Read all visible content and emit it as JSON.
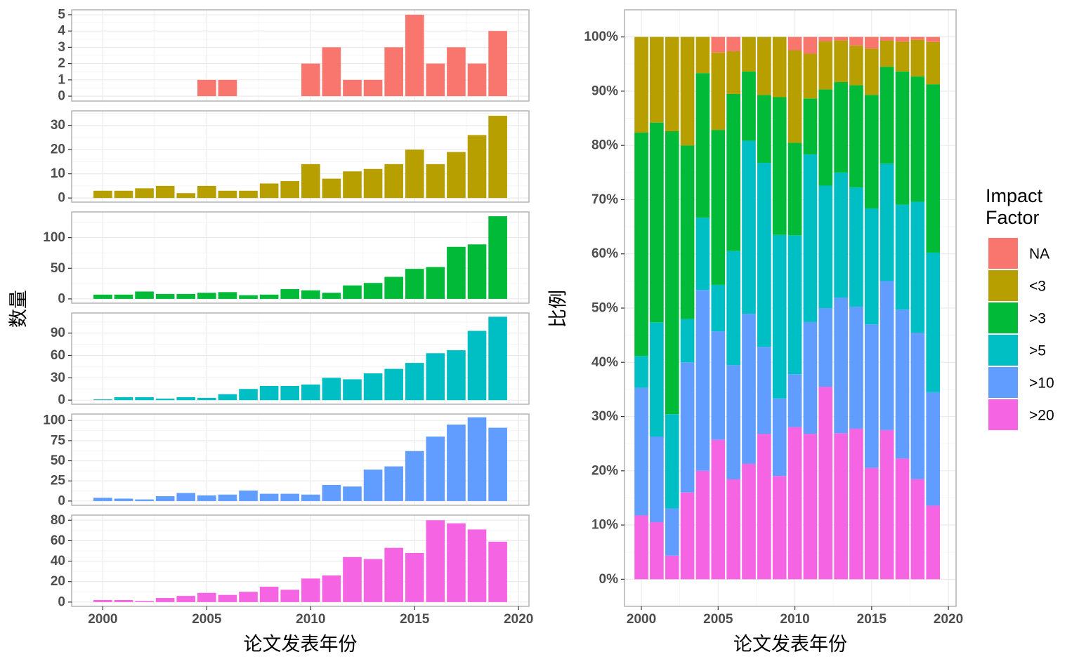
{
  "chart_data": [
    {
      "type": "bar",
      "layout": "faceted",
      "x": [
        2000,
        2001,
        2002,
        2003,
        2004,
        2005,
        2006,
        2007,
        2008,
        2009,
        2010,
        2011,
        2012,
        2013,
        2014,
        2015,
        2016,
        2017,
        2018,
        2019
      ],
      "xlabel": "论文发表年份",
      "ylabel": "数量",
      "x_ticks": [
        2000,
        2005,
        2010,
        2015,
        2020
      ],
      "xlim": [
        1998.5,
        2020.5
      ],
      "grid": true,
      "panels": [
        {
          "name": "NA",
          "color": "#F8766D",
          "ylim": [
            -0.3,
            5.3
          ],
          "y_ticks": [
            0,
            1,
            2,
            3,
            4,
            5
          ],
          "values": [
            0,
            0,
            0,
            0,
            0,
            1,
            1,
            0,
            0,
            0,
            2,
            3,
            1,
            1,
            3,
            5,
            2,
            3,
            2,
            4
          ]
        },
        {
          "name": "<3",
          "color": "#B79F00",
          "ylim": [
            -1.7,
            36
          ],
          "y_ticks": [
            0,
            10,
            20,
            30
          ],
          "values": [
            3,
            3,
            4,
            5,
            2,
            5,
            3,
            3,
            6,
            7,
            14,
            8,
            11,
            12,
            14,
            20,
            14,
            19,
            26,
            34
          ]
        },
        {
          "name": ">3",
          "color": "#00BA38",
          "ylim": [
            -7,
            142
          ],
          "y_ticks": [
            0,
            50,
            100
          ],
          "values": [
            7,
            7,
            12,
            8,
            8,
            10,
            11,
            6,
            7,
            16,
            14,
            10,
            22,
            26,
            36,
            49,
            52,
            85,
            89,
            135
          ]
        },
        {
          "name": ">5",
          "color": "#00BFC4",
          "ylim": [
            -5.5,
            117
          ],
          "y_ticks": [
            0,
            30,
            60,
            90
          ],
          "values": [
            1,
            4,
            4,
            2,
            4,
            3,
            8,
            15,
            19,
            19,
            21,
            30,
            28,
            36,
            42,
            50,
            63,
            67,
            93,
            112
          ]
        },
        {
          "name": ">10",
          "color": "#619CFF",
          "ylim": [
            -5.3,
            108
          ],
          "y_ticks": [
            0,
            25,
            50,
            75,
            100
          ],
          "values": [
            4,
            3,
            2,
            6,
            10,
            7,
            8,
            13,
            9,
            9,
            8,
            20,
            18,
            39,
            43,
            62,
            80,
            95,
            104,
            91
          ]
        },
        {
          "name": ">20",
          "color": "#F564E3",
          "ylim": [
            -4.2,
            85
          ],
          "y_ticks": [
            0,
            20,
            40,
            60,
            80
          ],
          "values": [
            2,
            2,
            1,
            4,
            6,
            9,
            7,
            10,
            15,
            12,
            23,
            26,
            44,
            42,
            53,
            48,
            80,
            77,
            71,
            59
          ]
        }
      ]
    },
    {
      "type": "bar",
      "stacked": true,
      "normalized": true,
      "x": [
        2000,
        2001,
        2002,
        2003,
        2004,
        2005,
        2006,
        2007,
        2008,
        2009,
        2010,
        2011,
        2012,
        2013,
        2014,
        2015,
        2016,
        2017,
        2018,
        2019
      ],
      "xlabel": "论文发表年份",
      "ylabel": "比例",
      "x_ticks": [
        2000,
        2005,
        2010,
        2015,
        2020
      ],
      "xlim": [
        1998.9,
        2020.5
      ],
      "y_ticks": [
        0,
        0.1,
        0.2,
        0.3,
        0.4,
        0.5,
        0.6,
        0.7,
        0.8,
        0.9,
        1.0
      ],
      "y_tick_labels": [
        "0%",
        "10%",
        "20%",
        "30%",
        "40%",
        "50%",
        "60%",
        "70%",
        "80%",
        "90%",
        "100%"
      ],
      "ylim": [
        -0.05,
        1.05
      ],
      "grid": true,
      "series": [
        {
          "name": ">20",
          "color": "#F564E3",
          "values": [
            2,
            2,
            1,
            4,
            6,
            9,
            7,
            10,
            15,
            12,
            23,
            26,
            44,
            42,
            53,
            48,
            80,
            77,
            71,
            59
          ]
        },
        {
          "name": ">10",
          "color": "#619CFF",
          "values": [
            4,
            3,
            2,
            6,
            10,
            7,
            8,
            13,
            9,
            9,
            8,
            20,
            18,
            39,
            43,
            62,
            80,
            95,
            104,
            91
          ]
        },
        {
          "name": ">5",
          "color": "#00BFC4",
          "values": [
            1,
            4,
            4,
            2,
            4,
            3,
            8,
            15,
            19,
            19,
            21,
            30,
            28,
            36,
            42,
            50,
            63,
            67,
            93,
            112
          ]
        },
        {
          "name": ">3",
          "color": "#00BA38",
          "values": [
            7,
            7,
            12,
            8,
            8,
            10,
            11,
            6,
            7,
            16,
            14,
            10,
            22,
            26,
            36,
            49,
            52,
            85,
            89,
            135
          ]
        },
        {
          "name": "<3",
          "color": "#B79F00",
          "values": [
            3,
            3,
            4,
            5,
            2,
            5,
            3,
            3,
            6,
            7,
            14,
            8,
            11,
            12,
            14,
            20,
            14,
            19,
            26,
            34
          ]
        },
        {
          "name": "NA",
          "color": "#F8766D",
          "values": [
            0,
            0,
            0,
            0,
            0,
            1,
            1,
            0,
            0,
            0,
            2,
            3,
            1,
            1,
            3,
            5,
            2,
            3,
            2,
            4
          ]
        }
      ]
    }
  ],
  "legend": {
    "title_lines": [
      "Impact",
      "Factor"
    ],
    "placement": "right",
    "items": [
      {
        "label": "NA",
        "color": "#F8766D"
      },
      {
        "label": "<3",
        "color": "#B79F00"
      },
      {
        "label": ">3",
        "color": "#00BA38"
      },
      {
        "label": ">5",
        "color": "#00BFC4"
      },
      {
        "label": ">10",
        "color": "#619CFF"
      },
      {
        "label": ">20",
        "color": "#F564E3"
      }
    ]
  }
}
